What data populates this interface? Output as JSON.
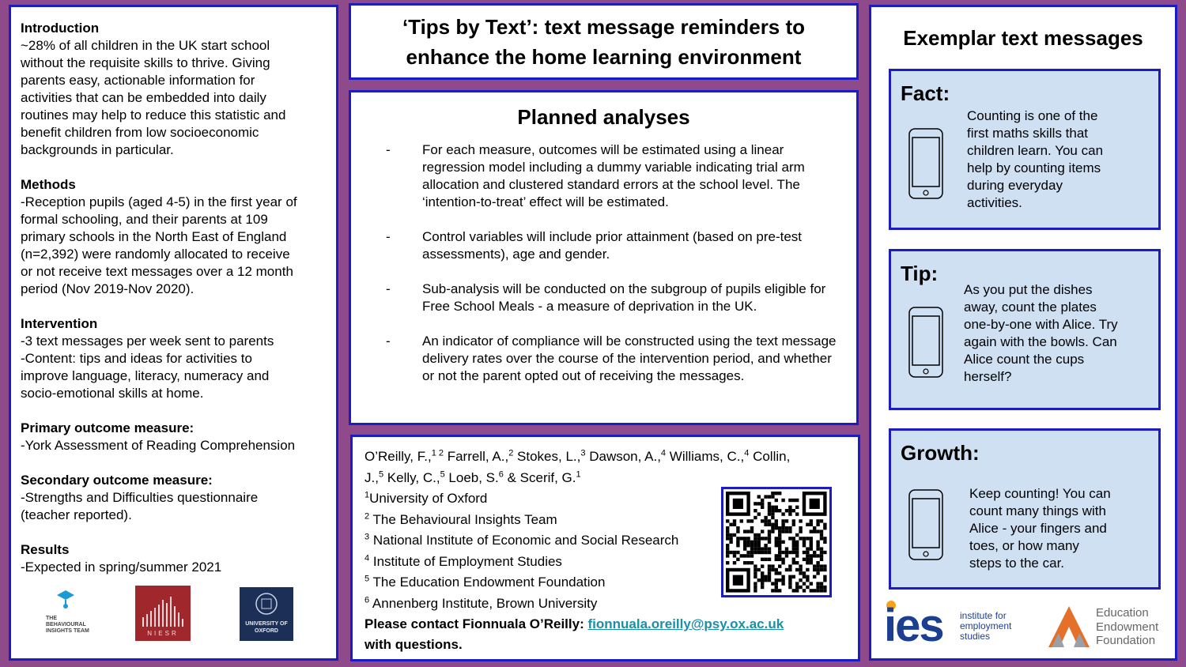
{
  "left": {
    "sections": [
      {
        "heading": "Introduction",
        "body": "~28% of all children in the UK start school\nwithout the requisite skills to thrive. Giving\nparents easy, actionable information for\nactivities that can be embedded into daily\nroutines may help to reduce this statistic and\nbenefit children from low socioeconomic\nbackgrounds in particular."
      },
      {
        "heading": "Methods",
        "body": "-Reception pupils (aged 4-5) in the first year of\nformal schooling, and their parents at 109\nprimary schools in the North East of England\n(n=2,392) were randomly allocated to receive\nor not receive text messages over a 12 month\nperiod (Nov 2019-Nov 2020)."
      },
      {
        "heading": "Intervention",
        "body": "-3 text messages per week sent to parents\n-Content: tips and ideas for activities to\nimprove language, literacy, numeracy and\nsocio-emotional skills at home."
      },
      {
        "heading": "Primary outcome measure:",
        "body": "-York Assessment of Reading Comprehension"
      },
      {
        "heading": "Secondary outcome measure:",
        "body": "-Strengths and Difficulties questionnaire\n(teacher reported)."
      },
      {
        "heading": "Results",
        "body": "-Expected in spring/summer 2021"
      }
    ],
    "logos": {
      "bit": "THE BEHAVIOURAL INSIGHTS TEAM",
      "niesr": "NIESR",
      "oxford": "UNIVERSITY OF OXFORD"
    }
  },
  "title": {
    "line1": "‘Tips by Text’: text message reminders to",
    "line2": "enhance the home learning environment"
  },
  "analyses": {
    "heading": "Planned analyses",
    "dash": "-",
    "bullets": [
      "For each measure, outcomes will be estimated using a linear regression model including a dummy variable indicating trial arm allocation and clustered standard errors at the school level. The ‘intention-to-treat’ effect will be estimated.",
      "Control variables will include prior attainment (based on pre-test assessments), age and gender.",
      "Sub-analysis will be conducted on the subgroup of pupils eligible for Free School Meals - a measure of deprivation in the UK.",
      "An indicator of compliance will be constructed using the text message delivery rates over the course of the intervention period, and whether or not the parent opted out of receiving the messages."
    ]
  },
  "authors": {
    "names": [
      {
        "name": "O’Reilly, F.,",
        "sup": "1 2"
      },
      {
        "name": " Farrell, A.,",
        "sup": "2"
      },
      {
        "name": " Stokes, L.,",
        "sup": "3"
      },
      {
        "name": " Dawson, A.,",
        "sup": "4"
      },
      {
        "name": " Williams, C.,",
        "sup": "4"
      },
      {
        "name": " Collin,",
        "sup": ""
      }
    ],
    "names2": [
      {
        "name": "J.,",
        "sup": "5"
      },
      {
        "name": " Kelly, C.,",
        "sup": "5"
      },
      {
        "name": " Loeb, S.",
        "sup": "6"
      },
      {
        "name": " & Scerif, G.",
        "sup": "1"
      }
    ],
    "affiliations": [
      {
        "sup": "1",
        "name": "University of Oxford"
      },
      {
        "sup": "2",
        "name": "The Behavioural Insights Team"
      },
      {
        "sup": "3",
        "name": "National Institute of Economic and Social Research"
      },
      {
        "sup": "4",
        "name": "Institute of Employment Studies"
      },
      {
        "sup": "5",
        "name": "The Education Endowment Foundation"
      },
      {
        "sup": "6",
        "name": "Annenberg Institute, Brown University"
      }
    ],
    "contact_prefix": "Please contact Fionnuala O’Reilly: ",
    "contact_email": "fionnuala.oreilly@psy.ox.ac.uk",
    "contact_suffix": "with questions."
  },
  "examples": {
    "heading": "Exemplar text messages",
    "cards": [
      {
        "title": "Fact:",
        "text": "Counting is one of the\nfirst maths skills that\nchildren learn. You can\nhelp by counting items\nduring everyday\nactivities."
      },
      {
        "title": "Tip:",
        "text": "As you put the dishes\naway, count the plates\none-by-one with Alice. Try\nagain with the bowls. Can\nAlice count the cups\nherself?"
      },
      {
        "title": "Growth:",
        "text": "Keep counting! You can\ncount many things with\nAlice - your fingers and\ntoes, or how many\nsteps to the car."
      }
    ],
    "logos": {
      "ies_mark": "ies",
      "ies_text": "institute for\nemployment\nstudies",
      "eef_text": "Education\nEndowment\nFoundation"
    }
  },
  "colors": {
    "background": "#8e4a8a",
    "border": "#1c1cc4",
    "card": "#cfe0f2",
    "link": "#1a8fa6",
    "ies_blue": "#1d3f8f",
    "ies_orange": "#f7a21b",
    "eef_orange": "#e4702a",
    "niesr_red": "#a0282c",
    "oxford_navy": "#1c2f56"
  }
}
